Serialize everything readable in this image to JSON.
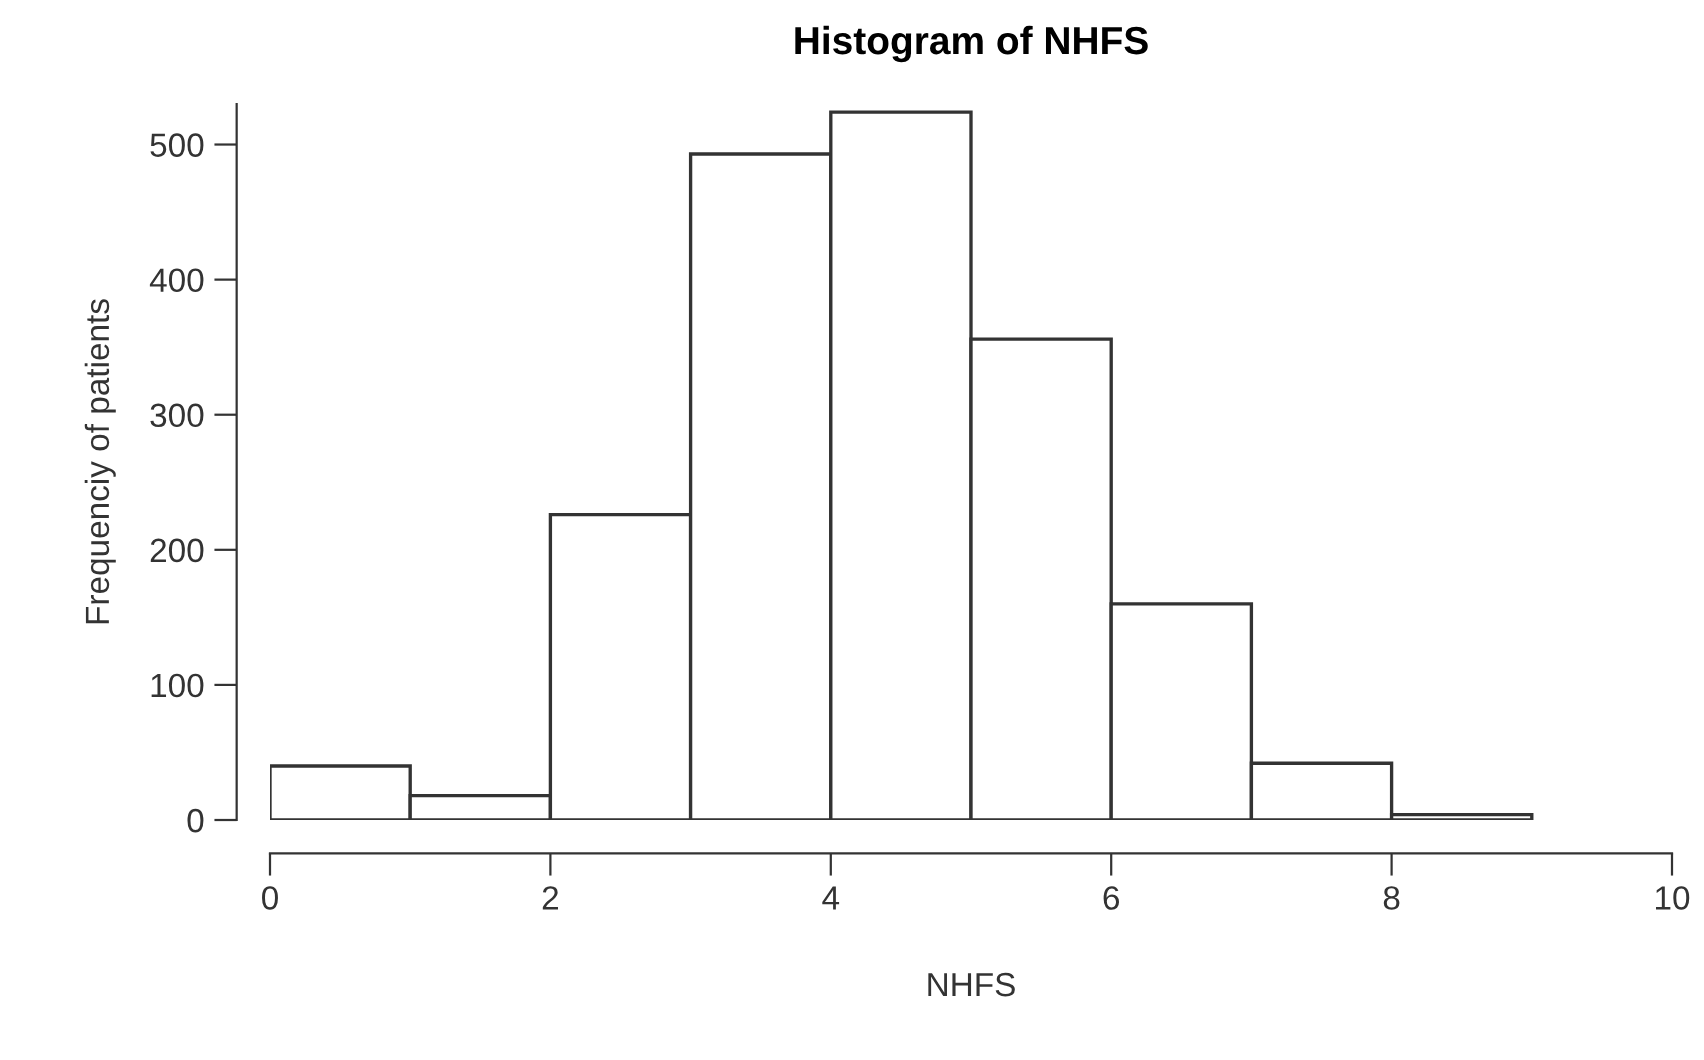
{
  "chart_data": {
    "type": "histogram",
    "title": "Histogram of NHFS",
    "xlabel": "NHFS",
    "ylabel": "Frequenciy of patients",
    "bins": [
      0,
      1,
      2,
      3,
      4,
      5,
      6,
      7,
      8,
      9
    ],
    "values": [
      40,
      18,
      226,
      493,
      524,
      356,
      160,
      42,
      4
    ],
    "color": "#ffffff",
    "xlim": [
      0,
      10
    ],
    "ylim": [
      0,
      530
    ],
    "xticks": [
      0,
      2,
      4,
      6,
      8,
      10
    ],
    "yticks": [
      0,
      100,
      200,
      300,
      400,
      500
    ],
    "grid": false
  }
}
